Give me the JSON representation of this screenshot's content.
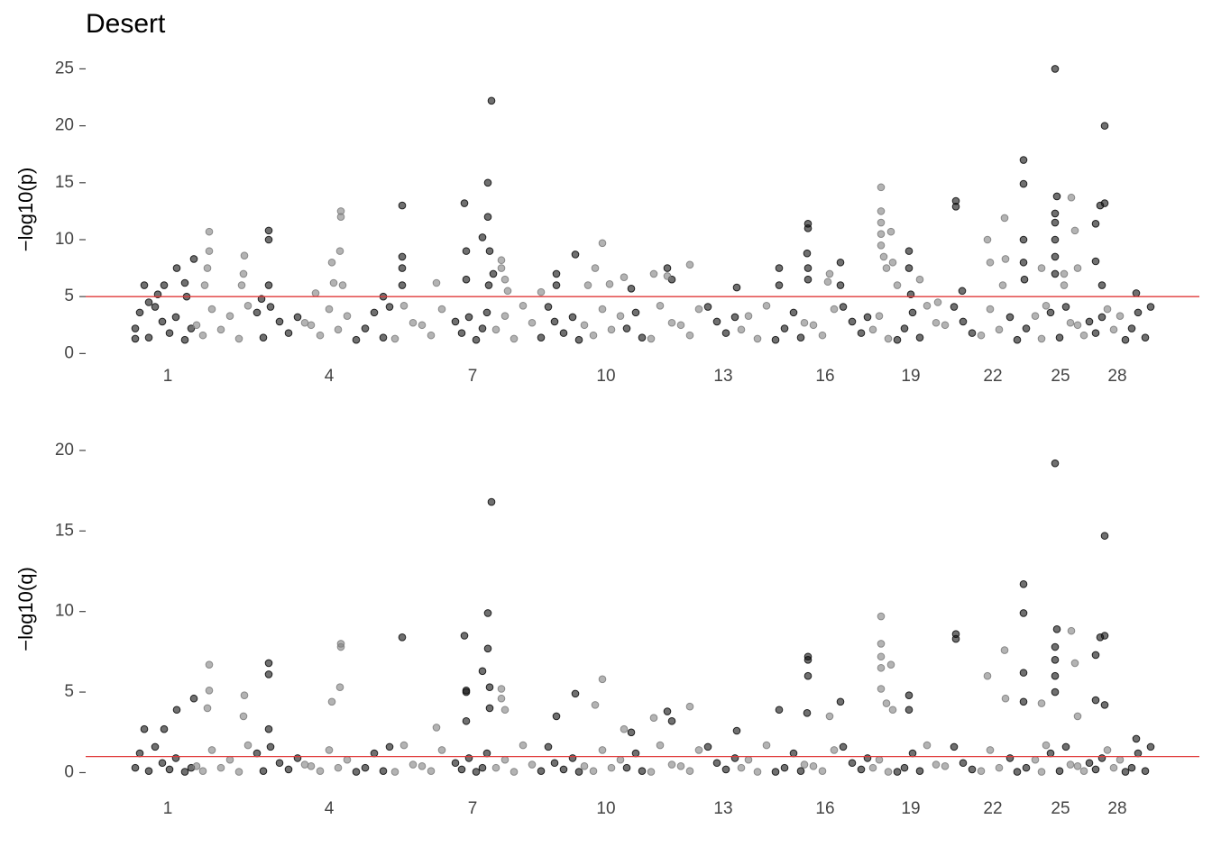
{
  "chart_data": [
    {
      "type": "scatter",
      "title": "Desert",
      "ylabel": "−log10(p)",
      "xlim": [
        0,
        1235
      ],
      "ylim": [
        -1,
        26.3
      ],
      "yticks": [
        0,
        5,
        10,
        15,
        20,
        25
      ],
      "xticks": [
        {
          "value": 91,
          "label": "1"
        },
        {
          "value": 270,
          "label": "4"
        },
        {
          "value": 429,
          "label": "7"
        },
        {
          "value": 577,
          "label": "10"
        },
        {
          "value": 707,
          "label": "13"
        },
        {
          "value": 820,
          "label": "16"
        },
        {
          "value": 915,
          "label": "19"
        },
        {
          "value": 1006,
          "label": "22"
        },
        {
          "value": 1081,
          "label": "25"
        },
        {
          "value": 1144,
          "label": "28"
        }
      ],
      "hline": {
        "value": 5,
        "color": "#e03a3a"
      },
      "series": [
        {
          "color": "#111111",
          "x": [
            55,
            65,
            70,
            80,
            87,
            101,
            110,
            112,
            120,
            203,
            203,
            203,
            195,
            351,
            351,
            351,
            351,
            330,
            420,
            422,
            422,
            440,
            446,
            446,
            450,
            448,
            452,
            447,
            522,
            522,
            543,
            605,
            645,
            650,
            722,
            769,
            769,
            801,
            801,
            800,
            801,
            801,
            837,
            837,
            913,
            913,
            915,
            965,
            965,
            972,
            1040,
            1040,
            1040,
            1040,
            1041,
            1075,
            1075,
            1075,
            1075,
            1075,
            1075,
            1077,
            1130,
            1130,
            1125,
            1120,
            1120,
            1127,
            1165,
            55,
            60,
            70,
            77,
            85,
            93,
            100,
            110,
            117,
            190,
            197,
            205,
            215,
            225,
            235,
            300,
            310,
            320,
            330,
            337,
            410,
            417,
            425,
            433,
            440,
            445,
            505,
            513,
            520,
            530,
            540,
            547,
            600,
            610,
            617,
            690,
            700,
            710,
            720,
            765,
            775,
            785,
            793,
            840,
            850,
            860,
            867,
            900,
            908,
            917,
            925,
            963,
            973,
            983,
            1025,
            1033,
            1043,
            1070,
            1080,
            1087,
            1113,
            1120,
            1127,
            1153,
            1160,
            1167,
            1175,
            1181
          ],
          "values": [
            1.3,
            6,
            4.5,
            5.2,
            6,
            7.5,
            6.2,
            5,
            8.3,
            10.8,
            10,
            6,
            4.8,
            13,
            8.5,
            7.5,
            6,
            5,
            13.2,
            9,
            6.5,
            10.2,
            15,
            12,
            22.2,
            9,
            7,
            6,
            7,
            6,
            8.7,
            5.7,
            7.5,
            6.5,
            5.8,
            7.5,
            6,
            11.4,
            11,
            8.8,
            7.5,
            6.5,
            8,
            6,
            9,
            7.5,
            5.2,
            13.4,
            12.9,
            5.5,
            17,
            14.9,
            10,
            8,
            6.5,
            25,
            12.3,
            11.5,
            10,
            8.5,
            7,
            13.8,
            20,
            13.2,
            13,
            11.4,
            8.1,
            6,
            5.3,
            2.2,
            3.6,
            1.4,
            4.1,
            2.8,
            1.8,
            3.2,
            1.2,
            2.2,
            3.6,
            1.4,
            4.1,
            2.8,
            1.8,
            3.2,
            1.2,
            2.2,
            3.6,
            1.4,
            4.1,
            2.8,
            1.8,
            3.2,
            1.2,
            2.2,
            3.6,
            1.4,
            4.1,
            2.8,
            1.8,
            3.2,
            1.2,
            2.2,
            3.6,
            1.4,
            4.1,
            2.8,
            1.8,
            3.2,
            1.2,
            2.2,
            3.6,
            1.4,
            4.1,
            2.8,
            1.8,
            3.2,
            1.2,
            2.2,
            3.6,
            1.4,
            4.1,
            2.8,
            1.8,
            3.2,
            1.2,
            2.2,
            3.6,
            1.4,
            4.1,
            2.8,
            1.8,
            3.2,
            1.2,
            2.2,
            3.6,
            1.4,
            4.1
          ]
        },
        {
          "color": "#808080",
          "x": [
            137,
            137,
            135,
            132,
            176,
            175,
            173,
            283,
            283,
            282,
            273,
            275,
            285,
            255,
            389,
            461,
            461,
            465,
            468,
            505,
            565,
            573,
            557,
            597,
            581,
            630,
            670,
            645,
            825,
            823,
            882,
            882,
            882,
            882,
            882,
            885,
            888,
            893,
            895,
            900,
            925,
            1000,
            1003,
            1019,
            1020,
            1017,
            1060,
            1085,
            1093,
            1097,
            1100,
            1085,
            945,
            123,
            130,
            140,
            150,
            160,
            170,
            180,
            243,
            250,
            260,
            270,
            280,
            290,
            343,
            353,
            363,
            373,
            383,
            395,
            455,
            465,
            475,
            485,
            495,
            553,
            563,
            573,
            583,
            593,
            627,
            637,
            650,
            660,
            670,
            680,
            727,
            735,
            745,
            755,
            797,
            807,
            817,
            830,
            873,
            880,
            890,
            933,
            943,
            953,
            993,
            1003,
            1013,
            1053,
            1060,
            1065,
            1092,
            1100,
            1107,
            1133,
            1140,
            1147
          ],
          "values": [
            10.7,
            9,
            7.5,
            6,
            8.6,
            7,
            6,
            12.5,
            12,
            9,
            8,
            6.2,
            6,
            5.3,
            6.2,
            8.2,
            7.5,
            6.5,
            5.5,
            5.4,
            7.5,
            9.7,
            6,
            6.7,
            6.1,
            7,
            7.8,
            6.8,
            7,
            6.3,
            14.6,
            12.5,
            11.5,
            10.5,
            9.5,
            8.5,
            7.5,
            10.7,
            8,
            6,
            6.5,
            10,
            8,
            11.9,
            8.3,
            6,
            7.5,
            7,
            13.7,
            10.8,
            7.5,
            6,
            4.5,
            2.5,
            1.6,
            3.9,
            2.1,
            3.3,
            1.3,
            4.2,
            2.7,
            2.5,
            1.6,
            3.9,
            2.1,
            3.3,
            1.3,
            4.2,
            2.7,
            2.5,
            1.6,
            3.9,
            2.1,
            3.3,
            1.3,
            4.2,
            2.7,
            2.5,
            1.6,
            3.9,
            2.1,
            3.3,
            1.3,
            4.2,
            2.7,
            2.5,
            1.6,
            3.9,
            2.1,
            3.3,
            1.3,
            4.2,
            2.7,
            2.5,
            1.6,
            3.9,
            2.1,
            3.3,
            1.3,
            4.2,
            2.7,
            2.5,
            1.6,
            3.9,
            2.1,
            3.3,
            1.3,
            4.2,
            2.7,
            2.5,
            1.6,
            3.9,
            2.1,
            3.3
          ]
        }
      ]
    },
    {
      "type": "scatter",
      "ylabel": "−log10(q)",
      "xlim": [
        0,
        1235
      ],
      "ylim": [
        -0.7,
        21
      ],
      "yticks": [
        0,
        5,
        10,
        15,
        20
      ],
      "xticks": [
        {
          "value": 91,
          "label": "1"
        },
        {
          "value": 270,
          "label": "4"
        },
        {
          "value": 429,
          "label": "7"
        },
        {
          "value": 577,
          "label": "10"
        },
        {
          "value": 707,
          "label": "13"
        },
        {
          "value": 820,
          "label": "16"
        },
        {
          "value": 915,
          "label": "19"
        },
        {
          "value": 1006,
          "label": "22"
        },
        {
          "value": 1081,
          "label": "25"
        },
        {
          "value": 1144,
          "label": "28"
        }
      ],
      "hline": {
        "value": 1,
        "color": "#e03a3a"
      },
      "series": [
        {
          "color": "#111111",
          "x": [
            65,
            87,
            101,
            120,
            203,
            203,
            203,
            351,
            420,
            422,
            422,
            422,
            440,
            446,
            446,
            450,
            448,
            448,
            522,
            543,
            605,
            645,
            650,
            722,
            769,
            801,
            801,
            801,
            800,
            837,
            913,
            913,
            965,
            965,
            1040,
            1040,
            1040,
            1040,
            1075,
            1075,
            1075,
            1075,
            1075,
            1077,
            1130,
            1130,
            1125,
            1120,
            1120,
            1130,
            1165,
            55,
            60,
            70,
            77,
            85,
            93,
            100,
            110,
            117,
            190,
            197,
            205,
            215,
            225,
            235,
            300,
            310,
            320,
            330,
            337,
            410,
            417,
            425,
            433,
            440,
            445,
            505,
            513,
            520,
            530,
            540,
            547,
            600,
            610,
            617,
            690,
            700,
            710,
            720,
            765,
            775,
            785,
            793,
            840,
            850,
            860,
            867,
            900,
            908,
            917,
            925,
            963,
            973,
            983,
            1025,
            1033,
            1043,
            1070,
            1080,
            1087,
            1113,
            1120,
            1127,
            1153,
            1160,
            1167,
            1175,
            1181
          ],
          "values": [
            2.7,
            2.7,
            3.9,
            4.6,
            6.8,
            6.1,
            2.7,
            8.4,
            8.5,
            5.1,
            5,
            3.2,
            6.3,
            9.9,
            7.7,
            16.8,
            5.3,
            4,
            3.5,
            4.9,
            2.5,
            3.8,
            3.2,
            2.6,
            3.9,
            7.2,
            7,
            6,
            3.7,
            4.4,
            4.8,
            3.9,
            8.6,
            8.3,
            11.7,
            9.9,
            6.2,
            4.4,
            19.2,
            7.8,
            7,
            6,
            5,
            8.9,
            14.7,
            8.5,
            8.4,
            7.3,
            4.5,
            4.2,
            2.1,
            0.3,
            1.2,
            0.1,
            1.6,
            0.6,
            0.2,
            0.9,
            0.05,
            0.3,
            1.2,
            0.1,
            1.6,
            0.6,
            0.2,
            0.9,
            0.05,
            0.3,
            1.2,
            0.1,
            1.6,
            0.6,
            0.2,
            0.9,
            0.05,
            0.3,
            1.2,
            0.1,
            1.6,
            0.6,
            0.2,
            0.9,
            0.05,
            0.3,
            1.2,
            0.1,
            1.6,
            0.6,
            0.2,
            0.9,
            0.05,
            0.3,
            1.2,
            0.1,
            1.6,
            0.6,
            0.2,
            0.9,
            0.05,
            0.3,
            1.2,
            0.1,
            1.6,
            0.6,
            0.2,
            0.9,
            0.05,
            0.3,
            1.2,
            0.1,
            1.6,
            0.6,
            0.2,
            0.9,
            0.05,
            0.3,
            1.2,
            0.1,
            1.6
          ]
        },
        {
          "color": "#808080",
          "x": [
            137,
            137,
            135,
            176,
            175,
            283,
            283,
            282,
            273,
            389,
            461,
            461,
            465,
            565,
            573,
            597,
            630,
            670,
            825,
            882,
            882,
            882,
            882,
            882,
            888,
            893,
            895,
            1000,
            1019,
            1020,
            1060,
            1093,
            1097,
            1100,
            123,
            130,
            140,
            150,
            160,
            170,
            180,
            243,
            250,
            260,
            270,
            280,
            290,
            343,
            353,
            363,
            373,
            383,
            395,
            455,
            465,
            475,
            485,
            495,
            553,
            563,
            573,
            583,
            593,
            627,
            637,
            650,
            660,
            670,
            680,
            727,
            735,
            745,
            755,
            797,
            807,
            817,
            830,
            873,
            880,
            890,
            933,
            943,
            953,
            993,
            1003,
            1013,
            1053,
            1060,
            1065,
            1092,
            1100,
            1107,
            1133,
            1140,
            1147
          ],
          "values": [
            6.7,
            5.1,
            4,
            4.8,
            3.5,
            8,
            7.8,
            5.3,
            4.4,
            2.8,
            5.2,
            4.6,
            3.9,
            4.2,
            5.8,
            2.7,
            3.4,
            4.1,
            3.5,
            9.7,
            8,
            7.2,
            6.5,
            5.2,
            4.3,
            6.7,
            3.9,
            6,
            7.6,
            4.6,
            4.3,
            8.8,
            6.8,
            3.5,
            0.4,
            0.1,
            1.4,
            0.3,
            0.8,
            0.05,
            1.7,
            0.5,
            0.4,
            0.1,
            1.4,
            0.3,
            0.8,
            0.05,
            1.7,
            0.5,
            0.4,
            0.1,
            1.4,
            0.3,
            0.8,
            0.05,
            1.7,
            0.5,
            0.4,
            0.1,
            1.4,
            0.3,
            0.8,
            0.05,
            1.7,
            0.5,
            0.4,
            0.1,
            1.4,
            0.3,
            0.8,
            0.05,
            1.7,
            0.5,
            0.4,
            0.1,
            1.4,
            0.3,
            0.8,
            0.05,
            1.7,
            0.5,
            0.4,
            0.1,
            1.4,
            0.3,
            0.8,
            0.05,
            1.7,
            0.5,
            0.4,
            0.1,
            1.4,
            0.3,
            0.8
          ]
        }
      ]
    }
  ]
}
